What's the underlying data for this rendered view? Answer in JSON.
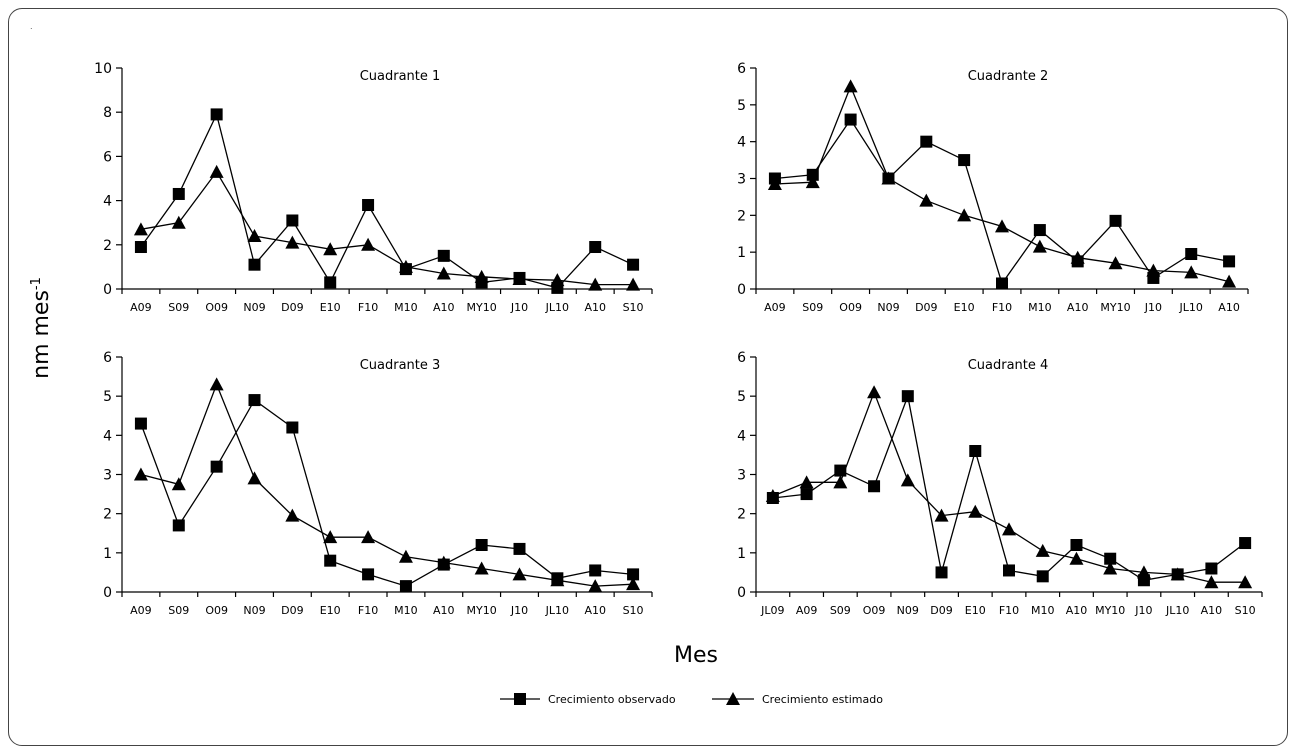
{
  "figure": {
    "corner_mark": ".",
    "ylabel": "nm mes",
    "ylabel_sup": "-1",
    "xlabel": "Mes",
    "legend": [
      {
        "label": "Crecimiento observado",
        "marker": "square"
      },
      {
        "label": "Crecimiento estimado",
        "marker": "triangle"
      }
    ],
    "colors": {
      "line": "#000000",
      "frame": "#444444"
    }
  },
  "chart_data": [
    {
      "type": "line",
      "title": "Cuadrante 1",
      "categories": [
        "A09",
        "S09",
        "O09",
        "N09",
        "D09",
        "E10",
        "F10",
        "M10",
        "A10",
        "MY10",
        "J10",
        "JL10",
        "A10",
        "S10"
      ],
      "ylim": [
        0,
        10
      ],
      "yticks": [
        0,
        2,
        4,
        6,
        8,
        10
      ],
      "series": [
        {
          "name": "Crecimiento observado",
          "marker": "square",
          "values": [
            1.9,
            4.3,
            7.9,
            1.1,
            3.1,
            0.3,
            3.8,
            0.9,
            1.5,
            0.3,
            0.5,
            0.05,
            1.9,
            1.1
          ]
        },
        {
          "name": "Crecimiento estimado",
          "marker": "triangle",
          "values": [
            2.7,
            3.0,
            5.3,
            2.4,
            2.1,
            1.8,
            2.0,
            1.0,
            0.7,
            0.55,
            0.45,
            0.4,
            0.2,
            0.2
          ]
        }
      ]
    },
    {
      "type": "line",
      "title": "Cuadrante 2",
      "categories": [
        "A09",
        "S09",
        "O09",
        "N09",
        "D09",
        "E10",
        "F10",
        "M10",
        "A10",
        "MY10",
        "J10",
        "JL10",
        "A10"
      ],
      "ylim": [
        0,
        6
      ],
      "yticks": [
        0,
        1,
        2,
        3,
        4,
        5,
        6
      ],
      "series": [
        {
          "name": "Crecimiento observado",
          "marker": "square",
          "values": [
            3.0,
            3.1,
            4.6,
            3.0,
            4.0,
            3.5,
            0.15,
            1.6,
            0.75,
            1.85,
            0.3,
            0.95,
            0.75
          ]
        },
        {
          "name": "Crecimiento estimado",
          "marker": "triangle",
          "values": [
            2.85,
            2.9,
            5.5,
            3.0,
            2.4,
            2.0,
            1.7,
            1.15,
            0.85,
            0.7,
            0.5,
            0.45,
            0.2
          ]
        }
      ]
    },
    {
      "type": "line",
      "title": "Cuadrante 3",
      "categories": [
        "A09",
        "S09",
        "O09",
        "N09",
        "D09",
        "E10",
        "F10",
        "M10",
        "A10",
        "MY10",
        "J10",
        "JL10",
        "A10",
        "S10"
      ],
      "ylim": [
        0,
        6
      ],
      "yticks": [
        0,
        1,
        2,
        3,
        4,
        5,
        6
      ],
      "series": [
        {
          "name": "Crecimiento observado",
          "marker": "square",
          "values": [
            4.3,
            1.7,
            3.2,
            4.9,
            4.2,
            0.8,
            0.45,
            0.15,
            0.7,
            1.2,
            1.1,
            0.35,
            0.55,
            0.45
          ]
        },
        {
          "name": "Crecimiento estimado",
          "marker": "triangle",
          "values": [
            3.0,
            2.75,
            5.3,
            2.9,
            1.95,
            1.4,
            1.4,
            0.9,
            0.75,
            0.6,
            0.45,
            0.3,
            0.15,
            0.2
          ]
        }
      ]
    },
    {
      "type": "line",
      "title": "Cuadrante 4",
      "categories": [
        "JL09",
        "A09",
        "S09",
        "O09",
        "N09",
        "D09",
        "E10",
        "F10",
        "M10",
        "A10",
        "MY10",
        "J10",
        "JL10",
        "A10",
        "S10"
      ],
      "ylim": [
        0,
        6
      ],
      "yticks": [
        0,
        1,
        2,
        3,
        4,
        5,
        6
      ],
      "series": [
        {
          "name": "Crecimiento observado",
          "marker": "square",
          "values": [
            2.4,
            2.5,
            3.1,
            2.7,
            5.0,
            0.5,
            3.6,
            0.55,
            0.4,
            1.2,
            0.85,
            0.3,
            0.45,
            0.6,
            1.25
          ]
        },
        {
          "name": "Crecimiento estimado",
          "marker": "triangle",
          "values": [
            2.45,
            2.8,
            2.8,
            5.1,
            2.85,
            1.95,
            2.05,
            1.6,
            1.05,
            0.85,
            0.6,
            0.5,
            0.45,
            0.25,
            0.25
          ]
        }
      ]
    }
  ]
}
